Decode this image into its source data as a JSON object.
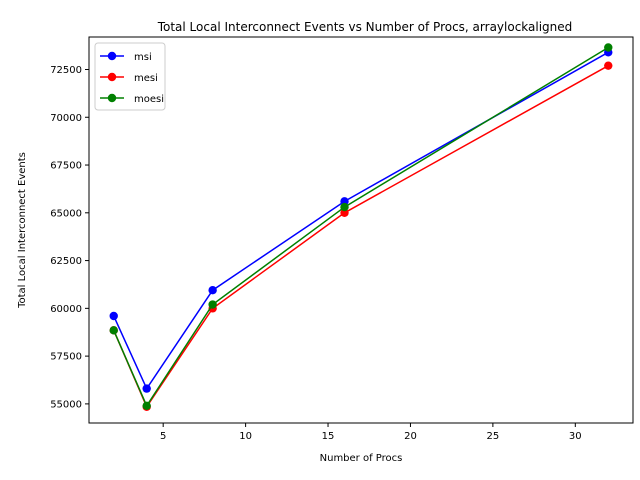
{
  "chart_data": {
    "type": "line",
    "title": "Total Local Interconnect Events vs Number of Procs, arraylockaligned",
    "xlabel": "Number of Procs",
    "ylabel": "Total Local Interconnect Events",
    "x": [
      2,
      4,
      8,
      16,
      32
    ],
    "xlim": [
      0.5,
      33.5
    ],
    "ylim": [
      54000,
      74200
    ],
    "xticks": [
      5,
      10,
      15,
      20,
      25,
      30
    ],
    "yticks": [
      55000,
      57500,
      60000,
      62500,
      65000,
      67500,
      70000,
      72500
    ],
    "grid": false,
    "legend_position": "upper-left",
    "series": [
      {
        "name": "msi",
        "color": "#0000ff",
        "values": [
          59600,
          55800,
          60950,
          65600,
          73400
        ]
      },
      {
        "name": "mesi",
        "color": "#ff0000",
        "values": [
          58850,
          54850,
          60000,
          65000,
          72700
        ]
      },
      {
        "name": "moesi",
        "color": "#008000",
        "values": [
          58850,
          54900,
          60200,
          65300,
          73650
        ]
      }
    ]
  }
}
